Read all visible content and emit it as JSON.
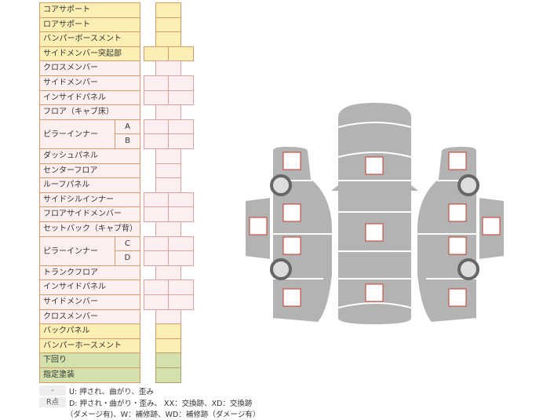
{
  "rows": [
    {
      "label": "コアサポート",
      "type": "single",
      "color": "yellow"
    },
    {
      "label": "ロアサポート",
      "type": "single",
      "color": "yellow"
    },
    {
      "label": "バンパーボースメント",
      "type": "single",
      "color": "yellow"
    },
    {
      "label": "サイドメンバー突起部",
      "type": "double",
      "color": "yellow"
    },
    {
      "label": "クロスメンバー",
      "type": "single",
      "color": "pink"
    },
    {
      "label": "サイドメンバー",
      "type": "double",
      "color": "pink"
    },
    {
      "label": "インサイドパネル",
      "type": "double",
      "color": "pink"
    },
    {
      "label": "フロア（キャブ床）",
      "type": "single",
      "color": "pink"
    },
    {
      "label": "ピラーインナー",
      "type": "double",
      "color": "pink",
      "subs": [
        "A",
        "B"
      ]
    },
    {
      "label": "ダッシュパネル",
      "type": "single",
      "color": "pink"
    },
    {
      "label": "センターフロア",
      "type": "single",
      "color": "pink"
    },
    {
      "label": "ルーフパネル",
      "type": "single",
      "color": "pink"
    },
    {
      "label": "サイドシルインナー",
      "type": "double",
      "color": "pink"
    },
    {
      "label": "フロアサイドメンバー",
      "type": "double",
      "color": "pink"
    },
    {
      "label": "セットバック（キャブ背）",
      "type": "single",
      "color": "pink"
    },
    {
      "label": "ピラーインナー",
      "type": "double",
      "color": "pink",
      "subs": [
        "C",
        "D"
      ]
    },
    {
      "label": "トランクフロア",
      "type": "single",
      "color": "pink"
    },
    {
      "label": "インサイドパネル",
      "type": "double",
      "color": "pink"
    },
    {
      "label": "サイドメンバー",
      "type": "double",
      "color": "pink"
    },
    {
      "label": "クロスメンバー",
      "type": "single",
      "color": "pink"
    },
    {
      "label": "バックパネル",
      "type": "single",
      "color": "yellow"
    },
    {
      "label": "バンパーホースメント",
      "type": "single",
      "color": "yellow"
    },
    {
      "label": "下回り",
      "type": "single",
      "color": "green"
    },
    {
      "label": "指定塗装",
      "type": "single",
      "color": "green"
    }
  ],
  "legend": {
    "key1": "-",
    "text1": "U: 押され、曲がり、歪み",
    "key2": "R点",
    "text2": "D: 押され・曲がり・歪み、 XX：交換跡、XD：交換跡",
    "text3": "（ダメージ有)、W：補修跡、WD：補修跡（ダメージ有）"
  },
  "colors": {
    "yellow": "#fcefb4",
    "pink": "#fdeef0",
    "green": "#d3e2ac",
    "body": "#b3b3b3",
    "marker": "#c0392b"
  }
}
